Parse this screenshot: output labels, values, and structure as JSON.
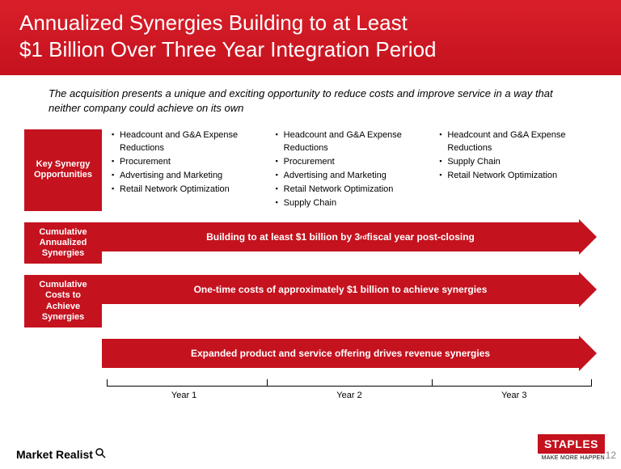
{
  "colors": {
    "brand_red": "#c4121e",
    "header_gradient_top": "#d91f2a",
    "header_gradient_bottom": "#c4121e",
    "text": "#000000",
    "page_num": "#888888",
    "background": "#ffffff"
  },
  "typography": {
    "title_fontsize": 26,
    "intro_fontsize": 13,
    "label_fontsize": 11,
    "bullet_fontsize": 11,
    "arrow_fontsize": 12
  },
  "header": {
    "title_line1": "Annualized Synergies Building to at Least",
    "title_line2": "$1 Billion Over Three Year Integration Period"
  },
  "intro": "The acquisition presents a unique and exciting opportunity to reduce costs and improve service in a way that neither company could achieve on its own",
  "key_synergy": {
    "label": "Key Synergy Opportunities",
    "columns": [
      [
        "Headcount and G&A Expense Reductions",
        "Procurement",
        "Advertising and Marketing",
        "Retail Network Optimization"
      ],
      [
        "Headcount and G&A Expense Reductions",
        "Procurement",
        "Advertising and Marketing",
        "Retail Network Optimization",
        "Supply Chain"
      ],
      [
        "Headcount and G&A Expense Reductions",
        "Supply Chain",
        "Retail Network Optimization"
      ]
    ]
  },
  "arrows": [
    {
      "label": "Cumulative Annualized Synergies",
      "text_html": "Building to at least $1 billion by 3<sup>rd</sup> fiscal year post-closing"
    },
    {
      "label": "Cumulative Costs to Achieve Synergies",
      "text_html": "One-time costs of approximately $1 billion to achieve synergies"
    },
    {
      "label": "",
      "text_html": "Expanded product and service offering drives revenue synergies"
    }
  ],
  "timeline": {
    "years": [
      "Year 1",
      "Year 2",
      "Year 3"
    ]
  },
  "footer": {
    "left_logo": "Market Realist",
    "right_logo": "STAPLES",
    "right_tagline": "MAKE MORE HAPPEN",
    "page_number": "12"
  }
}
